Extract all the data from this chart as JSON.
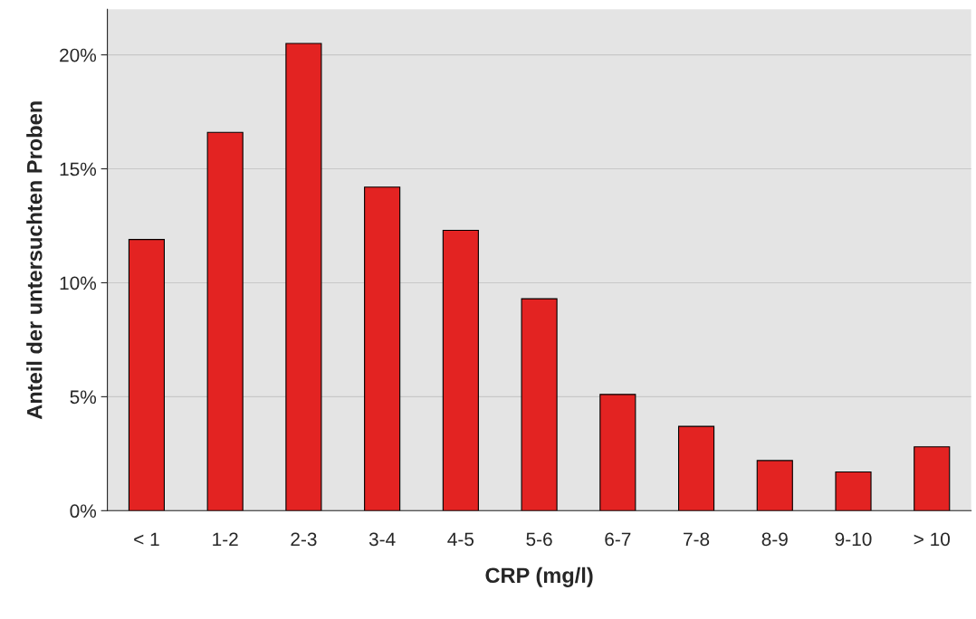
{
  "chart_data": {
    "type": "bar",
    "xlabel": "CRP (mg/l)",
    "ylabel": "Anteil der untersuchten Proben",
    "categories": [
      "< 1",
      "1-2",
      "2-3",
      "3-4",
      "4-5",
      "5-6",
      "6-7",
      "7-8",
      "8-9",
      "9-10",
      "> 10"
    ],
    "values": [
      11.9,
      16.6,
      20.5,
      14.2,
      12.3,
      9.3,
      5.1,
      3.7,
      2.2,
      1.7,
      2.8
    ],
    "color": "#e32322",
    "ylim": [
      0,
      22
    ],
    "yticks": [
      {
        "value": 0,
        "label": "0%"
      },
      {
        "value": 5,
        "label": "5%"
      },
      {
        "value": 10,
        "label": "10%"
      },
      {
        "value": 15,
        "label": "15%"
      },
      {
        "value": 20,
        "label": "20%"
      }
    ],
    "grid": "y"
  }
}
